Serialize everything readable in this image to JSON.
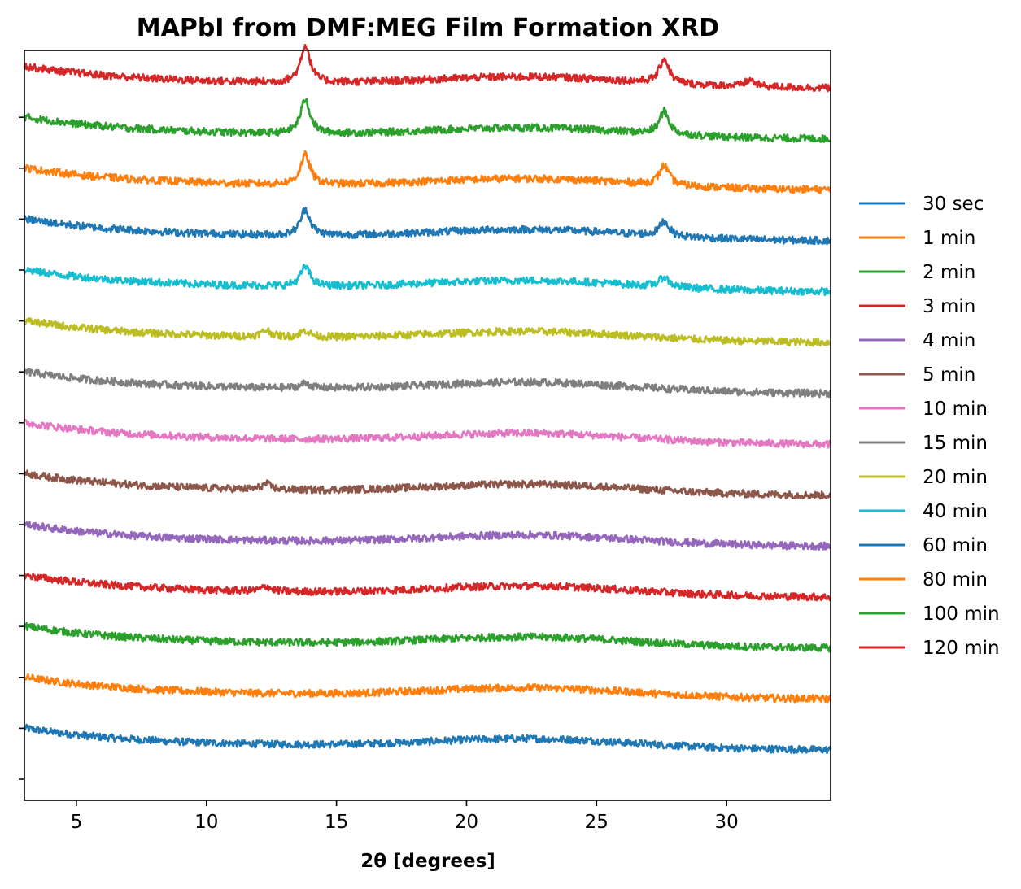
{
  "chart_data": {
    "type": "line",
    "title": "MAPbI from DMF:MEG Film Formation XRD",
    "xlabel": "2θ [degrees]",
    "ylabel": "",
    "xlim": [
      3,
      34
    ],
    "y_tick_labels_shown": false,
    "x_ticks": [
      5,
      10,
      15,
      20,
      25,
      30
    ],
    "grid": false,
    "legend_position": "right, outside plot",
    "series_order_note_visual": "stacked with vertical offsets, 30 sec at bottom, 120 min at top",
    "series": [
      {
        "name": "30 sec",
        "color": "#1f77b4",
        "peaks": []
      },
      {
        "name": "1 min",
        "color": "#ff7f0e",
        "peaks": []
      },
      {
        "name": "2 min",
        "color": "#2ca02c",
        "peaks": []
      },
      {
        "name": "3 min",
        "color": "#d62728",
        "peaks": [
          {
            "x": 12.3,
            "h": 0.3
          }
        ]
      },
      {
        "name": "4 min",
        "color": "#9467bd",
        "peaks": []
      },
      {
        "name": "5 min",
        "color": "#8c564b",
        "peaks": [
          {
            "x": 12.3,
            "h": 0.35
          }
        ]
      },
      {
        "name": "10 min",
        "color": "#e377c2",
        "peaks": []
      },
      {
        "name": "15 min",
        "color": "#7f7f7f",
        "peaks": [
          {
            "x": 13.8,
            "h": 0.3
          }
        ]
      },
      {
        "name": "20 min",
        "color": "#bcbd22",
        "peaks": [
          {
            "x": 12.3,
            "h": 0.4
          },
          {
            "x": 13.8,
            "h": 0.4
          }
        ]
      },
      {
        "name": "40 min",
        "color": "#17becf",
        "peaks": [
          {
            "x": 13.8,
            "h": 1.2
          },
          {
            "x": 27.6,
            "h": 0.6
          }
        ]
      },
      {
        "name": "60 min",
        "color": "#1f77b4",
        "peaks": [
          {
            "x": 13.8,
            "h": 1.6
          },
          {
            "x": 27.6,
            "h": 0.9
          }
        ]
      },
      {
        "name": "80 min",
        "color": "#ff7f0e",
        "peaks": [
          {
            "x": 13.8,
            "h": 1.8
          },
          {
            "x": 27.6,
            "h": 1.2
          }
        ]
      },
      {
        "name": "100 min",
        "color": "#2ca02c",
        "peaks": [
          {
            "x": 13.8,
            "h": 2.1
          },
          {
            "x": 27.6,
            "h": 1.4
          }
        ]
      },
      {
        "name": "120 min",
        "color": "#d62728",
        "peaks": [
          {
            "x": 13.8,
            "h": 2.3
          },
          {
            "x": 27.6,
            "h": 1.5
          },
          {
            "x": 30.9,
            "h": 0.4
          }
        ]
      }
    ]
  }
}
